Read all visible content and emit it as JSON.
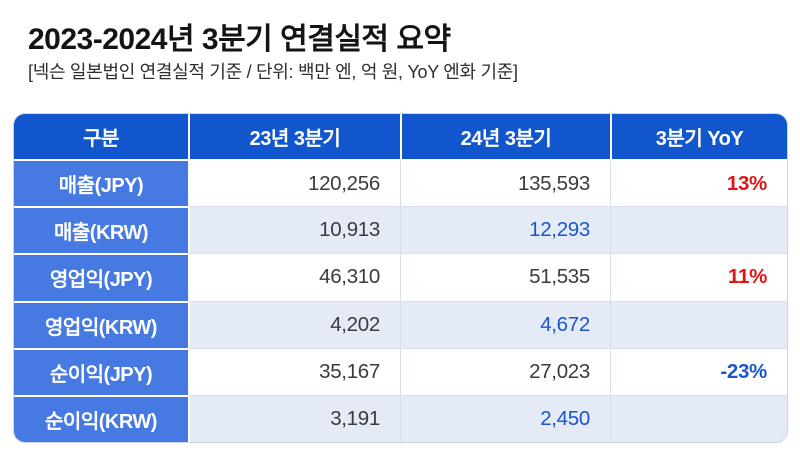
{
  "page": {
    "title": "2023-2024년 3분기 연결실적 요약",
    "subtitle": "[넥슨 일본법인 연결실적 기준 / 단위: 백만 엔, 억 원, YoY 엔화 기준]"
  },
  "colors": {
    "header_bg": "#1256CE",
    "label_bg": "#4679E2",
    "zebra_row_bg": "#E4EBF6",
    "value_dark": "#3B3B3B",
    "value_blue": "#1A56CC",
    "yoy_up_red": "#E01317",
    "yoy_down_blue": "#1656CF"
  },
  "table": {
    "columns": [
      "구분",
      "23년 3분기",
      "24년 3분기",
      "3분기 YoY"
    ],
    "rows": [
      {
        "label": "매출(JPY)",
        "q3_2023": "120,256",
        "q3_2024": "135,593",
        "yoy": "13%"
      },
      {
        "label": "매출(KRW)",
        "q3_2023": "10,913",
        "q3_2024": "12,293",
        "yoy": ""
      },
      {
        "label": "영업익(JPY)",
        "q3_2023": "46,310",
        "q3_2024": "51,535",
        "yoy": "11%"
      },
      {
        "label": "영업익(KRW)",
        "q3_2023": "4,202",
        "q3_2024": "4,672",
        "yoy": ""
      },
      {
        "label": "순이익(JPY)",
        "q3_2023": "35,167",
        "q3_2024": "27,023",
        "yoy": "-23%"
      },
      {
        "label": "순이익(KRW)",
        "q3_2023": "3,191",
        "q3_2024": "2,450",
        "yoy": ""
      }
    ]
  },
  "chart_data": {
    "type": "table",
    "title": "2023-2024년 3분기 연결실적 요약",
    "subtitle": "[넥슨 일본법인 연결실적 기준 / 단위: 백만 엔, 억 원, YoY 엔화 기준]",
    "columns": [
      "구분",
      "23년 3분기",
      "24년 3분기",
      "3분기 YoY"
    ],
    "rows": [
      [
        "매출(JPY)",
        120256,
        135593,
        "13%"
      ],
      [
        "매출(KRW)",
        10913,
        12293,
        null
      ],
      [
        "영업익(JPY)",
        46310,
        51535,
        "11%"
      ],
      [
        "영업익(KRW)",
        4202,
        4672,
        null
      ],
      [
        "순이익(JPY)",
        35167,
        27023,
        "-23%"
      ],
      [
        "순이익(KRW)",
        3191,
        2450,
        null
      ]
    ],
    "units": "JPY rows: 백만 엔, KRW rows: 억 원, YoY: 엔화 기준"
  }
}
